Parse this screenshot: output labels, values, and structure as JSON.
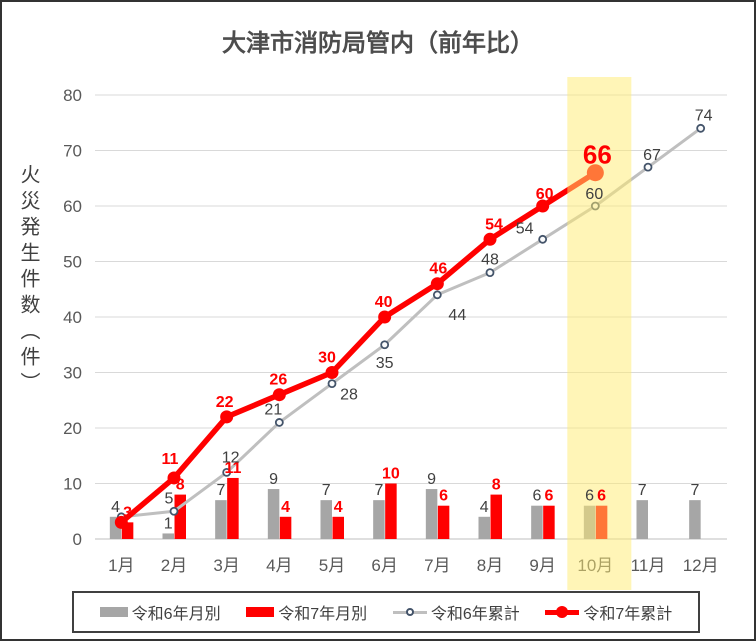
{
  "title": "大津市消防局管内（前年比）",
  "y_axis_title": "火災発生件数（件）",
  "chart_data": {
    "type": "combo-bar-line",
    "title": "大津市消防局管内（前年比）",
    "ylabel": "火災発生件数（件）",
    "ylim": [
      0,
      80
    ],
    "ytick_step": 10,
    "grid": true,
    "legend_position": "bottom",
    "categories": [
      "1月",
      "2月",
      "3月",
      "4月",
      "5月",
      "6月",
      "7月",
      "8月",
      "9月",
      "10月",
      "11月",
      "12月"
    ],
    "series": [
      {
        "name": "令和6年月別",
        "type": "bar",
        "color": "#A6A6A6",
        "values": [
          4,
          1,
          7,
          9,
          7,
          7,
          9,
          4,
          6,
          6,
          7,
          7
        ]
      },
      {
        "name": "令和7年月別",
        "type": "bar",
        "color": "#FF0000",
        "values": [
          3,
          8,
          11,
          4,
          4,
          10,
          6,
          8,
          6,
          6,
          null,
          null
        ]
      },
      {
        "name": "令和6年累計",
        "type": "line",
        "color": "#BFBFBF",
        "marker": "open-circle",
        "marker_color": "#44546A",
        "values": [
          4,
          5,
          12,
          21,
          28,
          35,
          44,
          48,
          54,
          60,
          67,
          74
        ]
      },
      {
        "name": "令和7年累計",
        "type": "line",
        "color": "#FF0000",
        "marker": "filled-circle",
        "marker_color": "#FF0000",
        "values": [
          3,
          11,
          22,
          26,
          30,
          40,
          46,
          54,
          60,
          66,
          null,
          null
        ]
      }
    ],
    "highlight": {
      "month": "10月",
      "color": "#FFEC70"
    },
    "emphasized_label": {
      "series": "令和7年累計",
      "month": "10月",
      "value": 66
    },
    "label_layout": {
      "line_label_offsets": {
        "令和6年累計": [
          null,
          [
            -5,
            -8
          ],
          [
            4,
            -10
          ],
          [
            -6,
            -8
          ],
          [
            17,
            16
          ],
          [
            0,
            23
          ],
          [
            20,
            25
          ],
          [
            0,
            -8
          ],
          [
            -18,
            -6
          ],
          [
            -1,
            -7
          ],
          [
            4,
            -7
          ],
          [
            3,
            -8
          ]
        ],
        "令和7年累計": [
          null,
          [
            -4,
            -14
          ],
          [
            -2,
            -10
          ],
          [
            -1,
            -10
          ],
          [
            -5,
            -10
          ],
          [
            -1,
            -10
          ],
          [
            1,
            -10
          ],
          [
            4,
            -10
          ],
          [
            2,
            -7
          ],
          [
            2,
            -9
          ],
          null,
          null
        ]
      }
    }
  }
}
